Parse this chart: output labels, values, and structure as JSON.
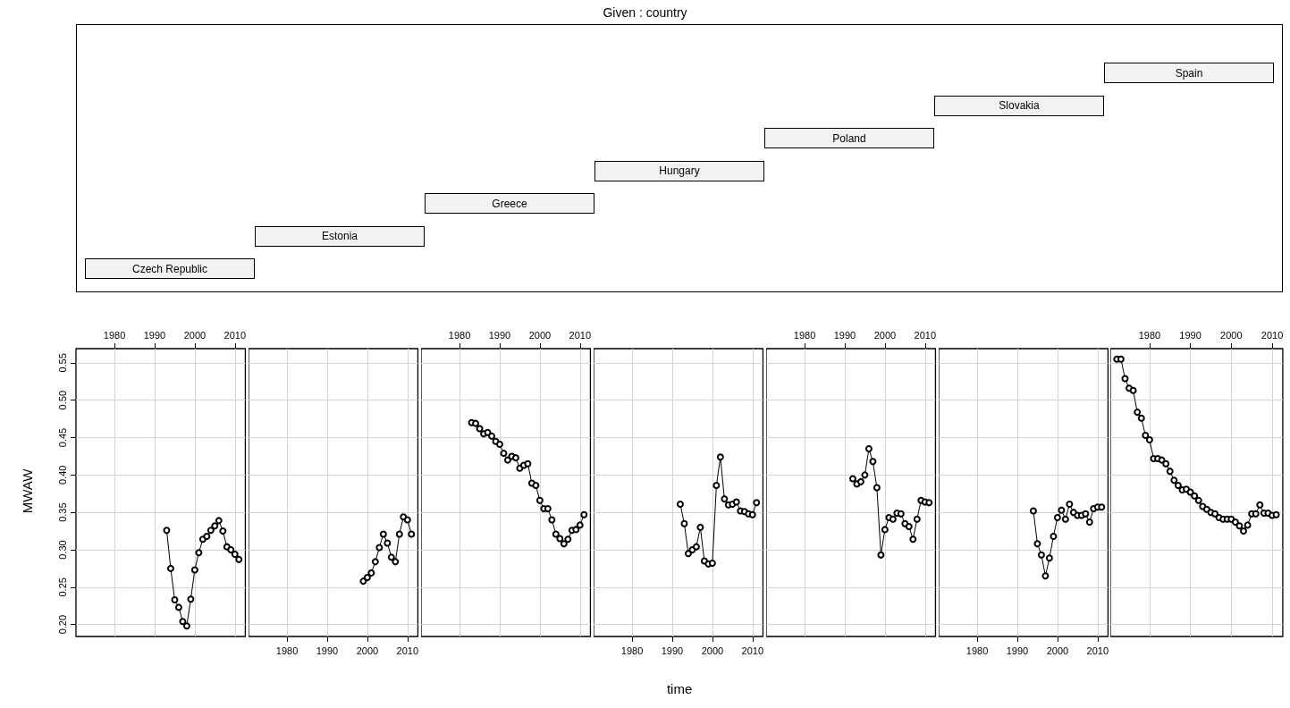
{
  "chart_data": [
    {
      "type": "other",
      "title": "Given : country",
      "annotations": [
        "Czech Republic",
        "Estonia",
        "Greece",
        "Hungary",
        "Poland",
        "Slovakia",
        "Spain"
      ]
    },
    {
      "type": "line",
      "marker": "circle",
      "grid": true,
      "ylabel": "MWAW",
      "xlim": [
        1970.4,
        2012.6
      ],
      "xticks": [
        1980,
        1990,
        2000,
        2010
      ],
      "ylim": [
        0.184,
        0.569
      ],
      "yticks": [
        {
          "value": 0.2,
          "label": "0.20"
        },
        {
          "value": 0.25,
          "label": "0.25"
        },
        {
          "value": 0.3,
          "label": "0.30"
        },
        {
          "value": 0.35,
          "label": "0.35"
        },
        {
          "value": 0.4,
          "label": "0.40"
        },
        {
          "value": 0.45,
          "label": "0.45"
        },
        {
          "value": 0.5,
          "label": "0.50"
        },
        {
          "value": 0.55,
          "label": "0.55"
        }
      ],
      "series": [
        {
          "color": "#000000",
          "x": [
            1993,
            1994,
            1995,
            1996,
            1997,
            1998,
            1999,
            2000,
            2001,
            2002,
            2003,
            2004,
            2005,
            2006,
            2007,
            2008,
            2009,
            2010,
            2011
          ],
          "values": [
            0.326,
            0.275,
            0.233,
            0.223,
            0.204,
            0.198,
            0.234,
            0.273,
            0.296,
            0.314,
            0.318,
            0.326,
            0.332,
            0.339,
            0.325,
            0.304,
            0.3,
            0.294,
            0.287
          ]
        }
      ]
    },
    {
      "type": "line",
      "marker": "circle",
      "grid": true,
      "tick_labels": "x",
      "xlim": [
        1970.4,
        2012.6
      ],
      "xticks": [
        1980,
        1990,
        2000,
        2010
      ],
      "ylim": [
        0.184,
        0.569
      ],
      "yticks": [
        0.2,
        0.25,
        0.3,
        0.35,
        0.4,
        0.45,
        0.5,
        0.55
      ],
      "series": [
        {
          "color": "#000000",
          "x": [
            1999,
            2000,
            2001,
            2002,
            2003,
            2004,
            2005,
            2006,
            2007,
            2008,
            2009,
            2010,
            2011
          ],
          "values": [
            0.258,
            0.263,
            0.269,
            0.284,
            0.303,
            0.321,
            0.309,
            0.29,
            0.284,
            0.321,
            0.344,
            0.34,
            0.321
          ]
        }
      ]
    },
    {
      "type": "line",
      "marker": "circle",
      "grid": true,
      "tick_labels": "x",
      "xlim": [
        1970.4,
        2012.6
      ],
      "xticks": [
        1980,
        1990,
        2000,
        2010
      ],
      "ylim": [
        0.184,
        0.569
      ],
      "yticks": [
        0.2,
        0.25,
        0.3,
        0.35,
        0.4,
        0.45,
        0.5,
        0.55
      ],
      "series": [
        {
          "color": "#000000",
          "x": [
            1983,
            1984,
            1985,
            1986,
            1987,
            1988,
            1989,
            1990,
            1991,
            1992,
            1993,
            1994,
            1995,
            1996,
            1997,
            1998,
            1999,
            2000,
            2001,
            2002,
            2003,
            2004,
            2005,
            2006,
            2007,
            2008,
            2009,
            2010,
            2011
          ],
          "values": [
            0.47,
            0.469,
            0.462,
            0.455,
            0.457,
            0.452,
            0.445,
            0.441,
            0.429,
            0.42,
            0.425,
            0.423,
            0.409,
            0.413,
            0.415,
            0.389,
            0.386,
            0.366,
            0.355,
            0.355,
            0.34,
            0.321,
            0.315,
            0.308,
            0.314,
            0.326,
            0.327,
            0.333,
            0.347
          ]
        }
      ]
    },
    {
      "type": "line",
      "marker": "circle",
      "grid": true,
      "tick_labels": "x",
      "xlim": [
        1970.4,
        2012.6
      ],
      "xticks": [
        1980,
        1990,
        2000,
        2010
      ],
      "ylim": [
        0.184,
        0.569
      ],
      "yticks": [
        0.2,
        0.25,
        0.3,
        0.35,
        0.4,
        0.45,
        0.5,
        0.55
      ],
      "xlabel": "time",
      "series": [
        {
          "color": "#000000",
          "x": [
            1992,
            1993,
            1994,
            1995,
            1996,
            1997,
            1998,
            1999,
            2000,
            2001,
            2002,
            2003,
            2004,
            2005,
            2006,
            2007,
            2008,
            2009,
            2010,
            2011
          ],
          "values": [
            0.361,
            0.335,
            0.295,
            0.3,
            0.304,
            0.33,
            0.285,
            0.281,
            0.282,
            0.386,
            0.424,
            0.368,
            0.36,
            0.361,
            0.364,
            0.352,
            0.351,
            0.348,
            0.347,
            0.363
          ]
        }
      ]
    },
    {
      "type": "line",
      "marker": "circle",
      "grid": true,
      "tick_labels": "x",
      "xlim": [
        1970.4,
        2012.6
      ],
      "xticks": [
        1980,
        1990,
        2000,
        2010
      ],
      "ylim": [
        0.184,
        0.569
      ],
      "yticks": [
        0.2,
        0.25,
        0.3,
        0.35,
        0.4,
        0.45,
        0.5,
        0.55
      ],
      "series": [
        {
          "color": "#000000",
          "x": [
            1992,
            1993,
            1994,
            1995,
            1996,
            1997,
            1998,
            1999,
            2000,
            2001,
            2002,
            2003,
            2004,
            2005,
            2006,
            2007,
            2008,
            2009,
            2010,
            2011
          ],
          "values": [
            0.395,
            0.388,
            0.391,
            0.4,
            0.435,
            0.418,
            0.383,
            0.293,
            0.327,
            0.343,
            0.341,
            0.349,
            0.348,
            0.335,
            0.331,
            0.314,
            0.341,
            0.366,
            0.364,
            0.363
          ]
        }
      ]
    },
    {
      "type": "line",
      "marker": "circle",
      "grid": true,
      "tick_labels": "x",
      "xlim": [
        1970.4,
        2012.6
      ],
      "xticks": [
        1980,
        1990,
        2000,
        2010
      ],
      "ylim": [
        0.184,
        0.569
      ],
      "yticks": [
        0.2,
        0.25,
        0.3,
        0.35,
        0.4,
        0.45,
        0.5,
        0.55
      ],
      "series": [
        {
          "color": "#000000",
          "x": [
            1994,
            1995,
            1996,
            1997,
            1998,
            1999,
            2000,
            2001,
            2002,
            2003,
            2004,
            2005,
            2006,
            2007,
            2008,
            2009,
            2010,
            2011
          ],
          "values": [
            0.352,
            0.308,
            0.293,
            0.265,
            0.289,
            0.318,
            0.343,
            0.353,
            0.341,
            0.361,
            0.35,
            0.346,
            0.346,
            0.348,
            0.337,
            0.355,
            0.357,
            0.357
          ]
        }
      ]
    },
    {
      "type": "line",
      "marker": "circle",
      "grid": true,
      "tick_labels": "x",
      "xlim": [
        1970.4,
        2012.6
      ],
      "xticks": [
        1980,
        1990,
        2000,
        2010
      ],
      "ylim": [
        0.184,
        0.569
      ],
      "yticks": [
        0.2,
        0.25,
        0.3,
        0.35,
        0.4,
        0.45,
        0.5,
        0.55
      ],
      "series": [
        {
          "color": "#000000",
          "x": [
            1972,
            1973,
            1974,
            1975,
            1976,
            1977,
            1978,
            1979,
            1980,
            1981,
            1982,
            1983,
            1984,
            1985,
            1986,
            1987,
            1988,
            1989,
            1990,
            1991,
            1992,
            1993,
            1994,
            1995,
            1996,
            1997,
            1998,
            1999,
            2000,
            2001,
            2002,
            2003,
            2004,
            2005,
            2006,
            2007,
            2008,
            2009,
            2010,
            2011
          ],
          "values": [
            0.555,
            0.555,
            0.529,
            0.516,
            0.513,
            0.484,
            0.476,
            0.453,
            0.447,
            0.422,
            0.422,
            0.42,
            0.415,
            0.405,
            0.393,
            0.386,
            0.38,
            0.381,
            0.377,
            0.372,
            0.366,
            0.358,
            0.354,
            0.35,
            0.348,
            0.343,
            0.341,
            0.341,
            0.341,
            0.337,
            0.332,
            0.325,
            0.333,
            0.348,
            0.348,
            0.36,
            0.349,
            0.349,
            0.346,
            0.347
          ]
        }
      ]
    }
  ]
}
